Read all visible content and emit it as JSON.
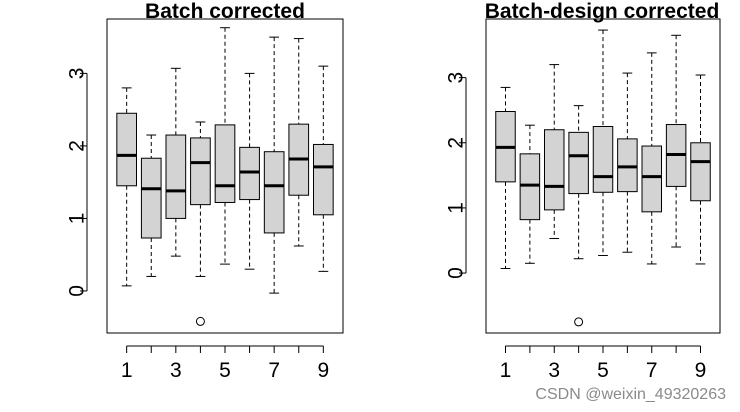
{
  "chart_data": [
    {
      "type": "boxplot",
      "title": "Batch corrected",
      "categories": [
        "1",
        "2",
        "3",
        "4",
        "5",
        "6",
        "7",
        "8",
        "9"
      ],
      "x_tick_labels": [
        "1",
        "3",
        "5",
        "7",
        "9"
      ],
      "y_tick_labels": [
        "0",
        "1",
        "2",
        "3"
      ],
      "ylim": [
        -0.58,
        3.75
      ],
      "series": [
        {
          "name": "1",
          "min": 0.07,
          "q1": 1.45,
          "median": 1.87,
          "q3": 2.45,
          "max": 2.8,
          "outliers": []
        },
        {
          "name": "2",
          "min": 0.2,
          "q1": 0.73,
          "median": 1.41,
          "q3": 1.83,
          "max": 2.15,
          "outliers": []
        },
        {
          "name": "3",
          "min": 0.48,
          "q1": 1.0,
          "median": 1.38,
          "q3": 2.15,
          "max": 3.07,
          "outliers": []
        },
        {
          "name": "4",
          "min": 0.2,
          "q1": 1.19,
          "median": 1.77,
          "q3": 2.11,
          "max": 2.33,
          "outliers": [
            -0.42
          ]
        },
        {
          "name": "5",
          "min": 0.37,
          "q1": 1.22,
          "median": 1.45,
          "q3": 2.29,
          "max": 3.63,
          "outliers": []
        },
        {
          "name": "6",
          "min": 0.3,
          "q1": 1.26,
          "median": 1.64,
          "q3": 1.98,
          "max": 3.0,
          "outliers": []
        },
        {
          "name": "7",
          "min": -0.03,
          "q1": 0.8,
          "median": 1.45,
          "q3": 1.92,
          "max": 3.5,
          "outliers": []
        },
        {
          "name": "8",
          "min": 0.62,
          "q1": 1.32,
          "median": 1.82,
          "q3": 2.3,
          "max": 3.48,
          "outliers": []
        },
        {
          "name": "9",
          "min": 0.27,
          "q1": 1.05,
          "median": 1.71,
          "q3": 2.02,
          "max": 3.1,
          "outliers": []
        }
      ]
    },
    {
      "type": "boxplot",
      "title": "Batch-design corrected",
      "categories": [
        "1",
        "2",
        "3",
        "4",
        "5",
        "6",
        "7",
        "8",
        "9"
      ],
      "x_tick_labels": [
        "1",
        "3",
        "5",
        "7",
        "9"
      ],
      "y_tick_labels": [
        "0",
        "1",
        "2",
        "3"
      ],
      "ylim": [
        -0.92,
        3.9
      ],
      "series": [
        {
          "name": "1",
          "min": 0.07,
          "q1": 1.4,
          "median": 1.93,
          "q3": 2.48,
          "max": 2.85,
          "outliers": []
        },
        {
          "name": "2",
          "min": 0.15,
          "q1": 0.82,
          "median": 1.35,
          "q3": 1.83,
          "max": 2.27,
          "outliers": []
        },
        {
          "name": "3",
          "min": 0.53,
          "q1": 0.97,
          "median": 1.33,
          "q3": 2.2,
          "max": 3.2,
          "outliers": []
        },
        {
          "name": "4",
          "min": 0.22,
          "q1": 1.22,
          "median": 1.8,
          "q3": 2.16,
          "max": 2.57,
          "outliers": [
            -0.75
          ]
        },
        {
          "name": "5",
          "min": 0.27,
          "q1": 1.24,
          "median": 1.48,
          "q3": 2.25,
          "max": 3.73,
          "outliers": []
        },
        {
          "name": "6",
          "min": 0.32,
          "q1": 1.25,
          "median": 1.63,
          "q3": 2.06,
          "max": 3.07,
          "outliers": []
        },
        {
          "name": "7",
          "min": 0.14,
          "q1": 0.94,
          "median": 1.48,
          "q3": 1.95,
          "max": 3.38,
          "outliers": []
        },
        {
          "name": "8",
          "min": 0.4,
          "q1": 1.33,
          "median": 1.82,
          "q3": 2.28,
          "max": 3.65,
          "outliers": []
        },
        {
          "name": "9",
          "min": 0.14,
          "q1": 1.11,
          "median": 1.71,
          "q3": 2.0,
          "max": 3.04,
          "outliers": []
        }
      ]
    }
  ],
  "watermark": "CSDN @weixin_49320263",
  "colors": {
    "box_fill": "#d3d3d3",
    "stroke": "#000000",
    "background": "#ffffff"
  }
}
